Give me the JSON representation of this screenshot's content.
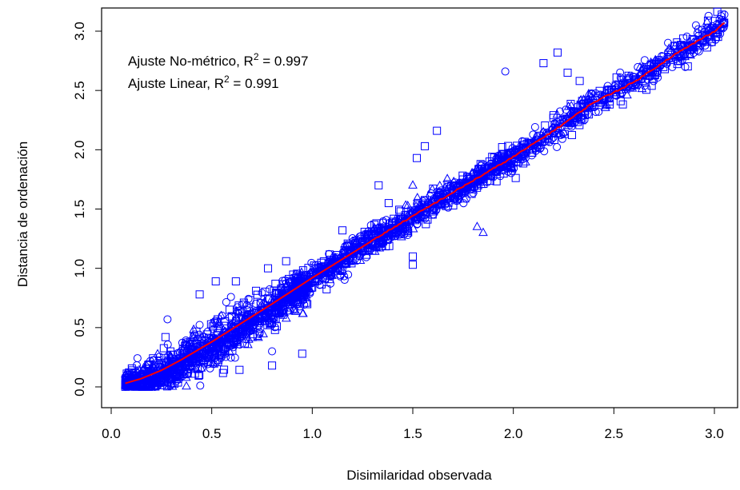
{
  "chart_data": {
    "type": "scatter",
    "xlabel": "Disimilaridad observada",
    "ylabel": "Distancia de ordenación",
    "xlim": [
      0.0,
      3.1
    ],
    "ylim": [
      -0.05,
      3.15
    ],
    "xticks": [
      "0.0",
      "0.5",
      "1.0",
      "1.5",
      "2.0",
      "2.5",
      "3.0"
    ],
    "xtick_values": [
      0.0,
      0.5,
      1.0,
      1.5,
      2.0,
      2.5,
      3.0
    ],
    "yticks": [
      "0.0",
      "0.5",
      "1.0",
      "1.5",
      "2.0",
      "2.5",
      "3.0"
    ],
    "ytick_values": [
      0.0,
      0.5,
      1.0,
      1.5,
      2.0,
      2.5,
      3.0
    ],
    "grid": false,
    "point_color": "#0000ff",
    "line_color": "#ff0000",
    "legend": {
      "placement": "top-left",
      "line1_prefix": "Ajuste No-métrico, R",
      "line1_sup": "2",
      "line1_suffix": " = 0.997",
      "line2_prefix": "Ajuste Linear,  R",
      "line2_sup": "2",
      "line2_suffix": " = 0.991"
    },
    "fit_line": {
      "x": [
        0.07,
        0.15,
        0.25,
        0.35,
        0.5,
        0.65,
        0.8,
        1.0,
        1.2,
        1.4,
        1.6,
        1.8,
        2.0,
        2.2,
        2.4,
        2.6,
        2.8,
        3.0,
        3.05
      ],
      "y": [
        0.03,
        0.07,
        0.14,
        0.23,
        0.38,
        0.54,
        0.7,
        0.92,
        1.13,
        1.34,
        1.54,
        1.74,
        1.94,
        2.16,
        2.4,
        2.57,
        2.8,
        3.0,
        3.07
      ]
    },
    "outliers": [
      {
        "x": 2.22,
        "y": 2.82,
        "shape": "square"
      },
      {
        "x": 2.15,
        "y": 2.73,
        "shape": "square"
      },
      {
        "x": 2.27,
        "y": 2.65,
        "shape": "square"
      },
      {
        "x": 2.33,
        "y": 2.58,
        "shape": "square"
      },
      {
        "x": 1.96,
        "y": 2.66,
        "shape": "circle"
      },
      {
        "x": 1.62,
        "y": 2.16,
        "shape": "square"
      },
      {
        "x": 1.56,
        "y": 2.03,
        "shape": "square"
      },
      {
        "x": 1.52,
        "y": 1.93,
        "shape": "square"
      },
      {
        "x": 1.33,
        "y": 1.7,
        "shape": "square"
      },
      {
        "x": 1.38,
        "y": 1.55,
        "shape": "square"
      },
      {
        "x": 1.5,
        "y": 1.7,
        "shape": "triangle"
      },
      {
        "x": 1.85,
        "y": 1.3,
        "shape": "triangle"
      },
      {
        "x": 1.82,
        "y": 1.35,
        "shape": "triangle"
      },
      {
        "x": 1.5,
        "y": 1.03,
        "shape": "square"
      },
      {
        "x": 1.5,
        "y": 1.1,
        "shape": "square"
      },
      {
        "x": 1.15,
        "y": 1.32,
        "shape": "square"
      },
      {
        "x": 0.87,
        "y": 1.06,
        "shape": "square"
      },
      {
        "x": 0.78,
        "y": 1.0,
        "shape": "square"
      },
      {
        "x": 0.52,
        "y": 0.89,
        "shape": "square"
      },
      {
        "x": 0.62,
        "y": 0.89,
        "shape": "square"
      },
      {
        "x": 0.44,
        "y": 0.78,
        "shape": "square"
      },
      {
        "x": 0.28,
        "y": 0.57,
        "shape": "circle"
      },
      {
        "x": 0.27,
        "y": 0.42,
        "shape": "square"
      },
      {
        "x": 0.95,
        "y": 0.28,
        "shape": "square"
      },
      {
        "x": 0.8,
        "y": 0.18,
        "shape": "square"
      },
      {
        "x": 0.8,
        "y": 0.3,
        "shape": "circle"
      }
    ]
  }
}
